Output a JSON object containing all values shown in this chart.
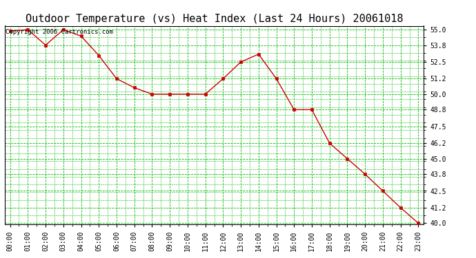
{
  "title": "Outdoor Temperature (vs) Heat Index (Last 24 Hours) 20061018",
  "copyright_text": "Copyright 2006 Cartronics.com",
  "x_labels": [
    "00:00",
    "01:00",
    "02:00",
    "03:00",
    "04:00",
    "05:00",
    "06:00",
    "07:00",
    "08:00",
    "09:00",
    "10:00",
    "11:00",
    "12:00",
    "13:00",
    "14:00",
    "15:00",
    "16:00",
    "17:00",
    "18:00",
    "19:00",
    "20:00",
    "21:00",
    "22:00",
    "23:00"
  ],
  "y_values": [
    54.9,
    55.0,
    53.8,
    55.0,
    54.5,
    53.0,
    51.2,
    50.5,
    50.0,
    50.0,
    50.0,
    50.0,
    51.2,
    52.5,
    53.1,
    51.2,
    48.8,
    48.8,
    46.2,
    45.0,
    43.8,
    42.5,
    41.2,
    40.0
  ],
  "y_min": 40.0,
  "y_max": 55.0,
  "y_ticks": [
    40.0,
    41.2,
    42.5,
    43.8,
    45.0,
    46.2,
    47.5,
    48.8,
    50.0,
    51.2,
    52.5,
    53.8,
    55.0
  ],
  "line_color": "#cc0000",
  "marker_color": "#cc0000",
  "bg_color": "#ffffff",
  "grid_color": "#00bb00",
  "title_fontsize": 11,
  "tick_fontsize": 7,
  "copyright_fontsize": 6.5
}
